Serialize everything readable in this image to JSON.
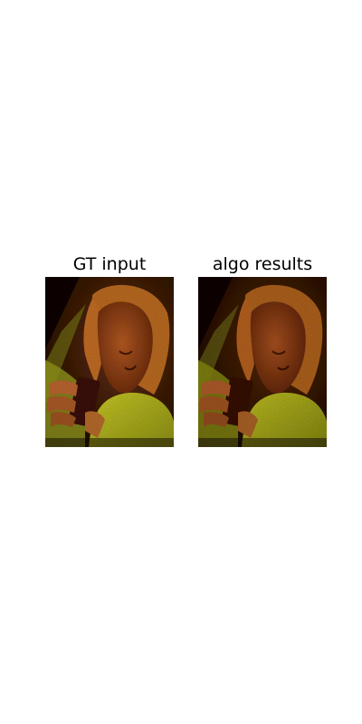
{
  "figure": {
    "panels": [
      {
        "title": "GT input",
        "image_description_icon": "photo-icon"
      },
      {
        "title": "algo results",
        "image_description_icon": "photo-icon"
      }
    ]
  },
  "colors": {
    "background": "#ffffff",
    "title_text": "#000000",
    "shadow": "#150903",
    "hair": "#b8621c",
    "skin": "#9a4a1c",
    "shirt": "#b8c21a",
    "phone": "#3a0c08"
  }
}
